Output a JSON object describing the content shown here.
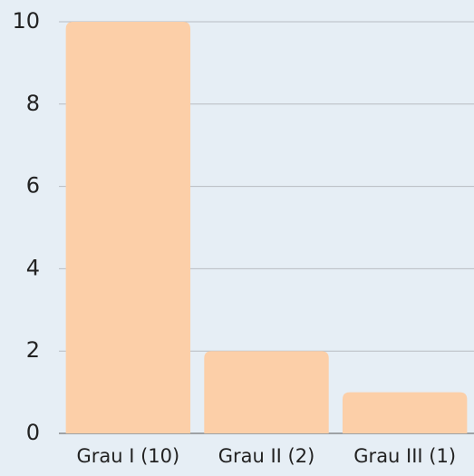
{
  "chart_data": {
    "type": "bar",
    "categories": [
      "Grau I (10)",
      "Grau II (2)",
      "Grau III (1)"
    ],
    "values": [
      10,
      2,
      1
    ],
    "color": "#fccfa8",
    "ylim": [
      0,
      10
    ],
    "yticks": [
      0,
      2,
      4,
      6,
      8,
      10
    ],
    "grid": true
  }
}
